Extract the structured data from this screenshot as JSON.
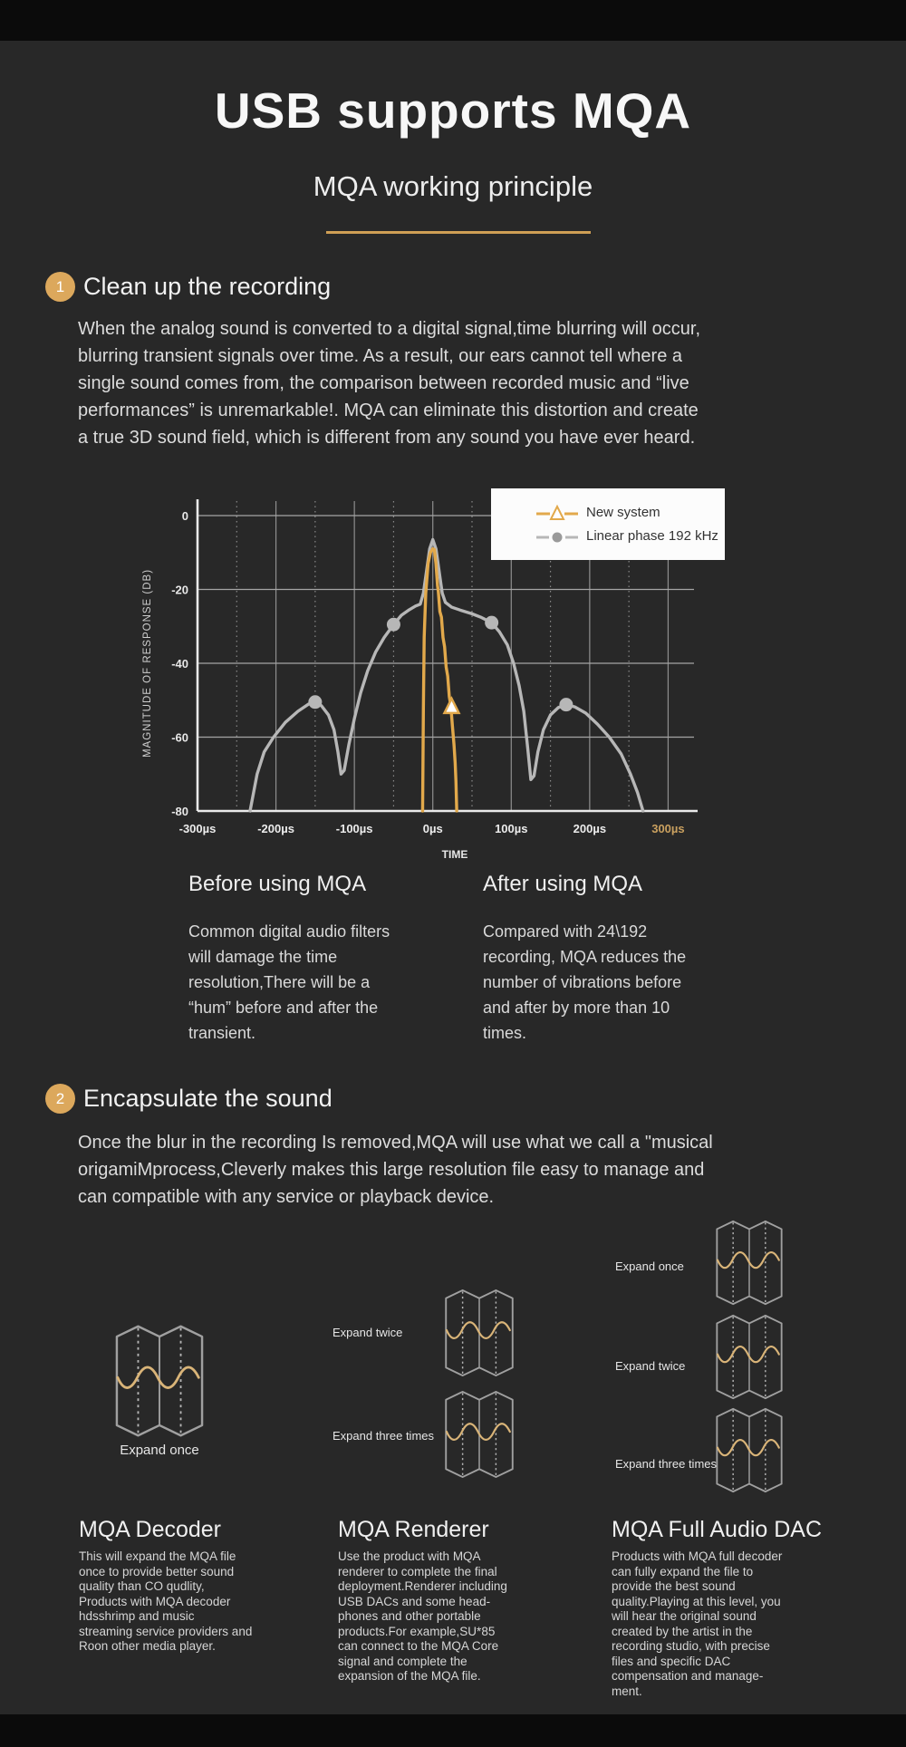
{
  "page": {
    "bg_color": "#282828",
    "accent_color": "#dca85c"
  },
  "header": {
    "title": "USB supports MQA",
    "subtitle": "MQA working principle"
  },
  "step1": {
    "number": "1",
    "heading": "Clean up the recording",
    "body": "When the analog sound is converted to a digital signal,time blurring will occur,\nblurring transient signals over time. As a result, our ears cannot tell where a\nsingle sound comes from, the comparison between recorded music and “live\nperformances” is unremarkable!. MQA can eliminate this distortion and create\na true 3D sound field, which is different from any sound you have ever heard."
  },
  "chart_data": {
    "type": "line",
    "xlabel": "TIME",
    "ylabel": "MAGNITUDE OF RESPONSE (DB)",
    "xlim": [
      -300,
      333
    ],
    "ylim": [
      -80,
      0
    ],
    "x_ticks": [
      -300,
      -200,
      -100,
      0,
      100,
      200,
      300
    ],
    "x_tick_labels": [
      "-300µs",
      "-200µs",
      "-100µs",
      "0µs",
      "100µs",
      "200µs",
      "300µs"
    ],
    "x_tick_color": "#ececec",
    "x_tick_color_last": "#c9a05f",
    "y_ticks": [
      0,
      -20,
      -40,
      -60,
      -80
    ],
    "grid": "on",
    "legend_position": "top-right",
    "series": [
      {
        "name": "Linear phase 192 kHz",
        "color": "#b7b7b7",
        "marker": "circle",
        "points": [
          [
            -233,
            -80
          ],
          [
            -224,
            -70
          ],
          [
            -215,
            -64
          ],
          [
            -203,
            -60
          ],
          [
            -188,
            -56
          ],
          [
            -172,
            -53
          ],
          [
            -158,
            -51
          ],
          [
            -150,
            -50.5
          ],
          [
            -142,
            -51.5
          ],
          [
            -133,
            -54
          ],
          [
            -126,
            -58
          ],
          [
            -121,
            -64
          ],
          [
            -117,
            -70
          ],
          [
            -113,
            -69
          ],
          [
            -107,
            -62
          ],
          [
            -100,
            -55
          ],
          [
            -92,
            -48
          ],
          [
            -83,
            -42
          ],
          [
            -73,
            -37
          ],
          [
            -62,
            -33
          ],
          [
            -50,
            -29.5
          ],
          [
            -40,
            -27
          ],
          [
            -30,
            -25.5
          ],
          [
            -22,
            -24.5
          ],
          [
            -16,
            -24
          ],
          [
            -12,
            -21
          ],
          [
            -8,
            -15
          ],
          [
            -4,
            -9
          ],
          [
            0,
            -6.5
          ],
          [
            4,
            -9
          ],
          [
            8,
            -15
          ],
          [
            12,
            -21
          ],
          [
            16,
            -23.5
          ],
          [
            24,
            -24.8
          ],
          [
            35,
            -25.6
          ],
          [
            50,
            -26.6
          ],
          [
            62,
            -27.6
          ],
          [
            75,
            -29
          ],
          [
            85,
            -31.5
          ],
          [
            95,
            -35
          ],
          [
            103,
            -40
          ],
          [
            110,
            -46
          ],
          [
            116,
            -53
          ],
          [
            121,
            -63
          ],
          [
            125,
            -71.5
          ],
          [
            129,
            -70.5
          ],
          [
            134,
            -64
          ],
          [
            141,
            -58
          ],
          [
            150,
            -54
          ],
          [
            160,
            -52
          ],
          [
            170,
            -51.2
          ],
          [
            181,
            -51.8
          ],
          [
            195,
            -53.5
          ],
          [
            210,
            -56.5
          ],
          [
            225,
            -60
          ],
          [
            240,
            -64.5
          ],
          [
            252,
            -70
          ],
          [
            261,
            -75
          ],
          [
            268,
            -80
          ]
        ],
        "marker_points": [
          [
            -150,
            -50.5
          ],
          [
            -50,
            -29.5
          ],
          [
            75,
            -29
          ],
          [
            170,
            -51.2
          ]
        ]
      },
      {
        "name": "New system",
        "color": "#e2a94b",
        "marker": "triangle",
        "points": [
          [
            -13,
            -80
          ],
          [
            -12,
            -52
          ],
          [
            -11,
            -33
          ],
          [
            -9,
            -21
          ],
          [
            -6,
            -13
          ],
          [
            -3,
            -10
          ],
          [
            0,
            -9
          ],
          [
            2,
            -9.2
          ],
          [
            4,
            -13
          ],
          [
            6,
            -19
          ],
          [
            7,
            -20.5
          ],
          [
            9,
            -26
          ],
          [
            11,
            -27.5
          ],
          [
            13,
            -33
          ],
          [
            15,
            -35.5
          ],
          [
            17,
            -41
          ],
          [
            19,
            -43.5
          ],
          [
            21,
            -49
          ],
          [
            23,
            -51.5
          ],
          [
            25,
            -57
          ],
          [
            27,
            -62
          ],
          [
            28.5,
            -67
          ],
          [
            29.5,
            -72
          ],
          [
            30.5,
            -80
          ]
        ],
        "marker_points": [
          [
            24,
            -52
          ]
        ]
      }
    ],
    "legend_order": [
      "New system",
      "Linear phase 192 kHz"
    ]
  },
  "comparison": {
    "before": {
      "title": "Before using MQA",
      "body": "Common digital audio filters\nwill damage the time\nresolution,There will be a\n“hum” before and after the\ntransient."
    },
    "after": {
      "title": "After using MQA",
      "body": "Compared with 24\\192\nrecording, MQA reduces the\nnumber of vibrations before\nand after by more than 10\ntimes."
    }
  },
  "step2": {
    "number": "2",
    "heading": "Encapsulate the sound",
    "body": "Once the blur in the recording Is removed,MQA will use what we call a \"musical\norigamiMprocess,Cleverly makes this large resolution file easy to manage and\ncan compatible with any service or playback device."
  },
  "origami": {
    "decoder": {
      "expand_labels": [
        "Expand once"
      ],
      "title": "MQA Decoder",
      "body": "This will expand the MQA file\nonce to provide better sound\nquality than CO qudlity,\nProducts with MQA decoder\nhdsshrimp and music\nstreaming service providers and\nRoon other media player."
    },
    "renderer": {
      "expand_labels": [
        "Expand twice",
        "Expand three times"
      ],
      "title": "MQA Renderer",
      "body": "Use the product with MQA\nrenderer to complete the final\ndeployment.Renderer including\nUSB DACs and some head-\nphones and other portable\nproducts.For example,SU*85\ncan connect to the MQA Core\nsignal and complete the\nexpansion of the MQA file."
    },
    "full_dac": {
      "expand_labels": [
        "Expand once",
        "Expand twice",
        "Expand three times"
      ],
      "title": "MQA Full Audio DAC",
      "body": "Products with MQA full decoder\ncan fully expand the file to\nprovide the best sound\nquality.Playing at this level, you\nwill hear the original sound\ncreated by the artist in the\nrecording studio, with precise\nfiles and specific DAC\ncompensation and manage-\nment."
    }
  }
}
